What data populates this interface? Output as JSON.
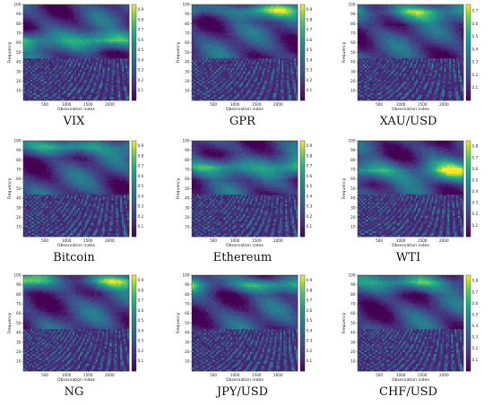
{
  "chart_data": [
    {
      "type": "heatmap",
      "title": "",
      "caption": "VIX",
      "xlabel": "Observation index",
      "ylabel": "Frequency",
      "xticks": [
        500,
        1000,
        1500,
        2000
      ],
      "yticks": [
        10,
        20,
        30,
        40,
        50,
        60,
        70,
        80,
        90,
        100
      ],
      "xlim": [
        0,
        2450
      ],
      "ylim": [
        0,
        100
      ],
      "colorbar_ticks": [
        0.1,
        0.2,
        0.3,
        0.4,
        0.5,
        0.6,
        0.7,
        0.8,
        0.9
      ],
      "colorscale": "viridis",
      "bright_frequency_band": [
        55,
        70
      ]
    },
    {
      "type": "heatmap",
      "title": "",
      "caption": "GPR",
      "xlabel": "Observation index",
      "ylabel": "Frequency",
      "xticks": [
        500,
        1000,
        1500,
        2000
      ],
      "yticks": [
        10,
        20,
        30,
        40,
        50,
        60,
        70,
        80,
        90,
        100
      ],
      "xlim": [
        0,
        2450
      ],
      "ylim": [
        0,
        100
      ],
      "colorbar_ticks": [
        0.1,
        0.2,
        0.3,
        0.4,
        0.5,
        0.6,
        0.7,
        0.8,
        0.9
      ],
      "colorscale": "viridis",
      "bright_frequency_band": [
        88,
        100
      ]
    },
    {
      "type": "heatmap",
      "title": "",
      "caption": "XAU/USD",
      "xlabel": "Observation index",
      "ylabel": "Frequency",
      "xticks": [
        500,
        1000,
        1500,
        2000
      ],
      "yticks": [
        10,
        20,
        30,
        40,
        50,
        60,
        70,
        80,
        90,
        100
      ],
      "xlim": [
        0,
        2450
      ],
      "ylim": [
        0,
        100
      ],
      "colorbar_ticks": [
        0.1,
        0.2,
        0.3,
        0.4,
        0.5,
        0.6,
        0.7
      ],
      "colorscale": "viridis",
      "bright_frequency_band": [
        85,
        100
      ]
    },
    {
      "type": "heatmap",
      "title": "",
      "caption": "Bitcoin",
      "xlabel": "Observation index",
      "ylabel": "Frequency",
      "xticks": [
        500,
        1000,
        1500,
        2000
      ],
      "yticks": [
        10,
        20,
        30,
        40,
        50,
        60,
        70,
        80,
        90,
        100
      ],
      "xlim": [
        0,
        2450
      ],
      "ylim": [
        0,
        100
      ],
      "colorbar_ticks": [
        0.1,
        0.2,
        0.3,
        0.4,
        0.5,
        0.6,
        0.7,
        0.8,
        0.9
      ],
      "colorscale": "viridis",
      "bright_frequency_band": [
        88,
        100
      ]
    },
    {
      "type": "heatmap",
      "title": "",
      "caption": "Ethereum",
      "xlabel": "Observation index",
      "ylabel": "Frequency",
      "xticks": [
        500,
        1000,
        1500,
        2000
      ],
      "yticks": [
        10,
        20,
        30,
        40,
        50,
        60,
        70,
        80,
        90,
        100
      ],
      "xlim": [
        0,
        2450
      ],
      "ylim": [
        0,
        100
      ],
      "colorbar_ticks": [
        0.1,
        0.2,
        0.3,
        0.4,
        0.5,
        0.6,
        0.7,
        0.8,
        0.9
      ],
      "colorscale": "viridis",
      "bright_frequency_band": [
        65,
        80
      ]
    },
    {
      "type": "heatmap",
      "title": "",
      "caption": "WTI",
      "xlabel": "Observation index",
      "ylabel": "Frequency",
      "xticks": [
        500,
        1000,
        1500,
        2000
      ],
      "yticks": [
        10,
        20,
        30,
        40,
        50,
        60,
        70,
        80,
        90,
        100
      ],
      "xlim": [
        0,
        2450
      ],
      "ylim": [
        0,
        100
      ],
      "colorbar_ticks": [
        0.1,
        0.2,
        0.3,
        0.4,
        0.5,
        0.6,
        0.7,
        0.8
      ],
      "colorscale": "viridis",
      "bright_frequency_band": [
        60,
        78
      ]
    },
    {
      "type": "heatmap",
      "title": "",
      "caption": "NG",
      "xlabel": "Observation index",
      "ylabel": "Frequency",
      "xticks": [
        500,
        1000,
        1500,
        2000
      ],
      "yticks": [
        10,
        20,
        30,
        40,
        50,
        60,
        70,
        80,
        90,
        100
      ],
      "xlim": [
        0,
        2450
      ],
      "ylim": [
        0,
        100
      ],
      "colorbar_ticks": [
        0.1,
        0.2,
        0.3,
        0.4,
        0.5,
        0.6,
        0.7,
        0.8,
        0.9
      ],
      "colorscale": "viridis",
      "bright_frequency_band": [
        88,
        100
      ]
    },
    {
      "type": "heatmap",
      "title": "",
      "caption": "JPY/USD",
      "xlabel": "Observation index",
      "ylabel": "Frequency",
      "xticks": [
        500,
        1000,
        1500,
        2000
      ],
      "yticks": [
        10,
        20,
        30,
        40,
        50,
        60,
        70,
        80,
        90,
        100
      ],
      "xlim": [
        0,
        2450
      ],
      "ylim": [
        0,
        100
      ],
      "colorbar_ticks": [
        0.1,
        0.2,
        0.3,
        0.4,
        0.5,
        0.6,
        0.7,
        0.8,
        0.9
      ],
      "colorscale": "viridis",
      "bright_frequency_band": [
        85,
        95
      ]
    },
    {
      "type": "heatmap",
      "title": "",
      "caption": "CHF/USD",
      "xlabel": "Observation index",
      "ylabel": "Frequency",
      "xticks": [
        500,
        1000,
        1500,
        2000
      ],
      "yticks": [
        10,
        20,
        30,
        40,
        50,
        60,
        70,
        80,
        90,
        100
      ],
      "xlim": [
        0,
        2450
      ],
      "ylim": [
        0,
        100
      ],
      "colorbar_ticks": [
        0.1,
        0.2,
        0.3,
        0.4,
        0.5,
        0.6,
        0.7,
        0.8
      ],
      "colorscale": "viridis",
      "bright_frequency_band": [
        85,
        100
      ]
    }
  ]
}
